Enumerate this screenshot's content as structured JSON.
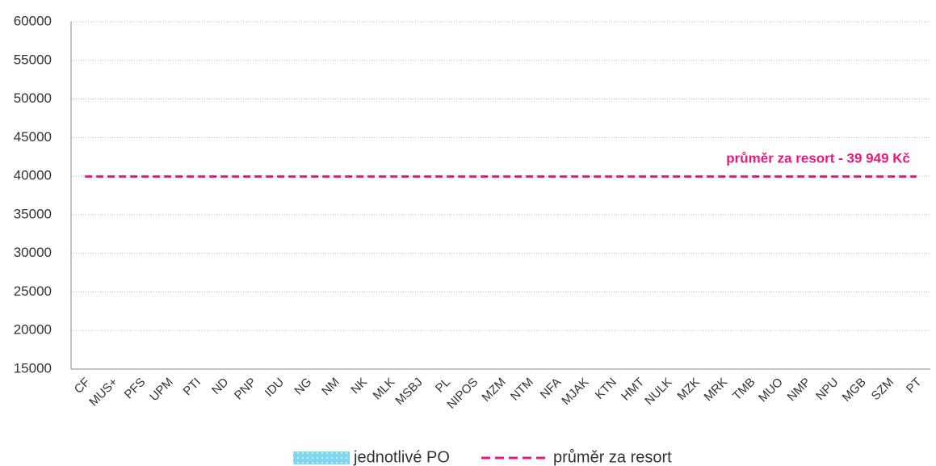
{
  "chart_data": {
    "type": "bar",
    "categories": [
      "CF",
      "MUS+",
      "PFS",
      "UPM",
      "PTI",
      "ND",
      "PNP",
      "IDU",
      "NG",
      "NM",
      "NK",
      "MLK",
      "MSBJ",
      "PL",
      "NIPOS",
      "MZM",
      "NTM",
      "NFA",
      "MJAK",
      "KTN",
      "HMT",
      "NULK",
      "MZK",
      "MRK",
      "TMB",
      "MUO",
      "NMP",
      "NPU",
      "MGB",
      "SZM",
      "PT"
    ],
    "series": [
      {
        "name": "jednotlivé PO",
        "color": "#7fd6f0",
        "values": [
          null,
          null,
          null,
          null,
          null,
          null,
          null,
          null,
          null,
          null,
          null,
          null,
          null,
          null,
          null,
          null,
          null,
          null,
          null,
          null,
          null,
          null,
          null,
          null,
          null,
          null,
          null,
          null,
          null,
          null,
          null
        ]
      },
      {
        "name": "průměr za resort",
        "type": "line",
        "color": "#e6197f",
        "values": [
          39949,
          39949,
          39949,
          39949,
          39949,
          39949,
          39949,
          39949,
          39949,
          39949,
          39949,
          39949,
          39949,
          39949,
          39949,
          39949,
          39949,
          39949,
          39949,
          39949,
          39949,
          39949,
          39949,
          39949,
          39949,
          39949,
          39949,
          39949,
          39949,
          39949,
          39949
        ]
      }
    ],
    "annotation": "průměr za  resort -  39 949 Kč",
    "ylim": [
      15000,
      60000
    ],
    "yticks": [
      15000,
      20000,
      25000,
      30000,
      35000,
      40000,
      45000,
      50000,
      55000,
      60000
    ],
    "grid": true,
    "legend": "bottom"
  }
}
